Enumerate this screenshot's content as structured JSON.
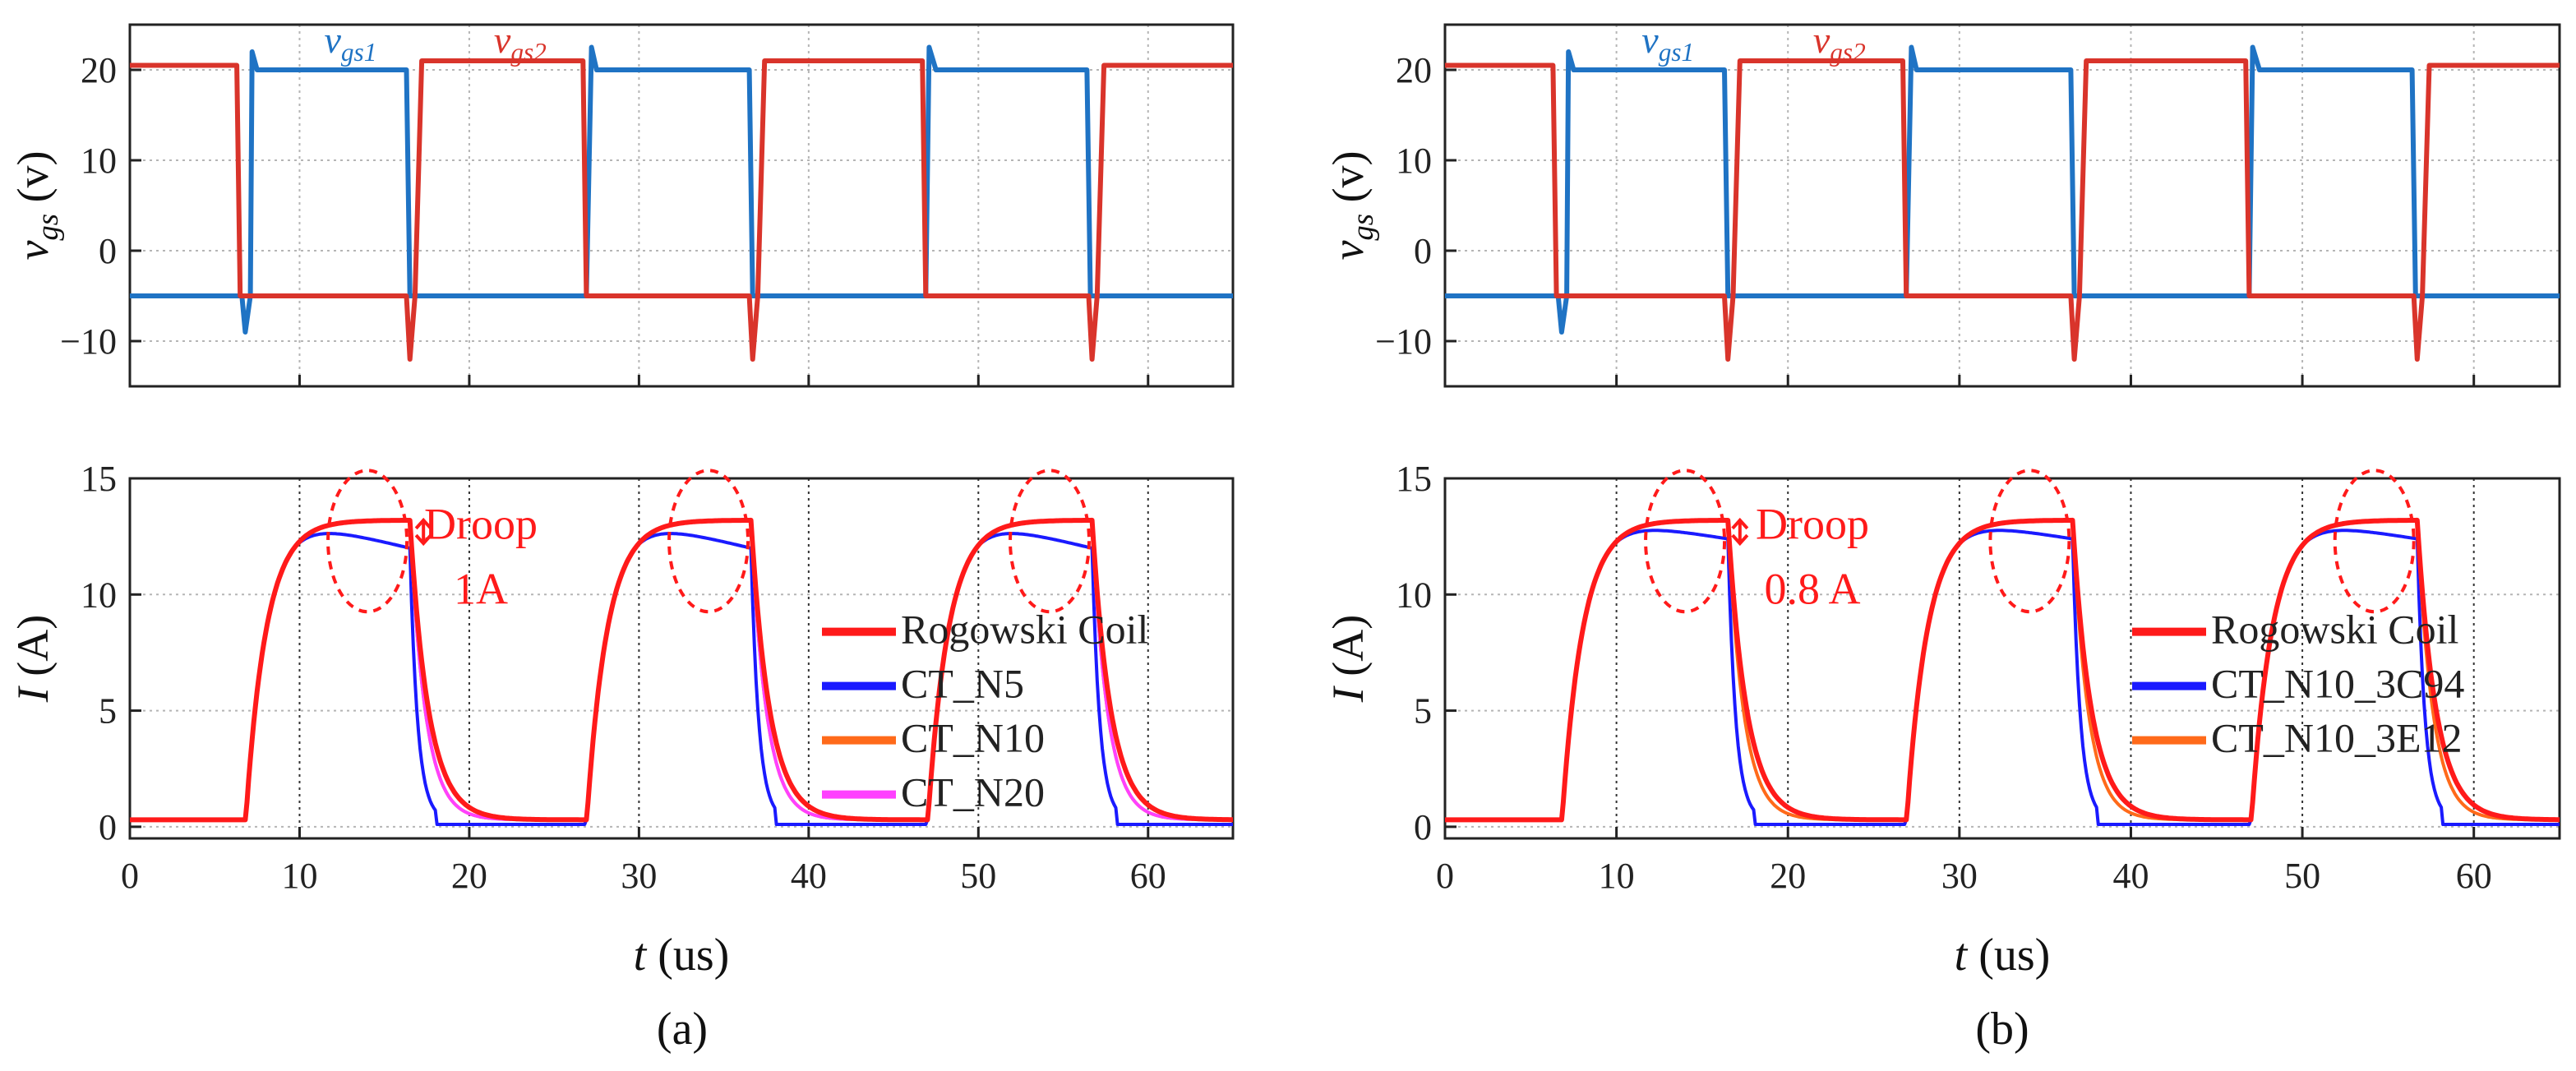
{
  "chart_data": [
    {
      "type": "line",
      "panel": "a",
      "title": "",
      "xlabel_var": "t",
      "xlabel_unit": " (us)",
      "xlim": [
        0,
        65
      ],
      "xticks": [
        0,
        10,
        20,
        30,
        40,
        50,
        60
      ],
      "caption": "(a)",
      "vgs": {
        "ylabel_main": "v",
        "ylabel_sub": "gs",
        "ylabel_unit": " (v)",
        "ylim": [
          -15,
          25
        ],
        "yticks": [
          20,
          10,
          0,
          -10
        ],
        "series": [
          {
            "name": "vgs1",
            "label_main": "v",
            "label_sub": "gs1",
            "color": "#1f73c4",
            "color_key": "blue",
            "x": [
              0,
              6.6,
              6.8,
              7.1,
              7.2,
              7.5,
              16.3,
              16.5,
              26.9,
              27.2,
              27.5,
              36.5,
              36.7,
              46.9,
              47.1,
              47.5,
              56.4,
              56.6,
              65
            ],
            "y": [
              -5,
              -5,
              -9,
              -5,
              22,
              20,
              20,
              -5,
              -5,
              22.5,
              20,
              20,
              -5,
              -5,
              22.5,
              20,
              20,
              -5,
              -5
            ]
          },
          {
            "name": "vgs2",
            "label_main": "v",
            "label_sub": "gs2",
            "color": "#d9342b",
            "color_key": "red",
            "x": [
              0,
              6.3,
              6.5,
              16.3,
              16.5,
              16.8,
              17.2,
              26.7,
              26.9,
              36.5,
              36.7,
              37.0,
              37.4,
              46.7,
              46.9,
              56.5,
              56.7,
              57.0,
              57.4,
              65
            ],
            "y": [
              20.5,
              20.5,
              -5,
              -5,
              -12,
              -5,
              21,
              21,
              -5,
              -5,
              -12,
              -5,
              21,
              21,
              -5,
              -5,
              -12,
              -5,
              20.5,
              20.5
            ]
          }
        ],
        "annotations": [
          {
            "text_main": "v",
            "text_sub": "gs1",
            "x": 13,
            "y": 23,
            "color_key": "blue"
          },
          {
            "text_main": "v",
            "text_sub": "gs2",
            "x": 23,
            "y": 23,
            "color_key": "red"
          }
        ]
      },
      "current": {
        "ylabel_main": "I",
        "ylabel_unit": " (A)",
        "ylim": [
          -0.5,
          15
        ],
        "yticks": [
          15,
          10,
          5,
          0
        ],
        "series": [
          {
            "name": "Rogowski Coil",
            "color": "#ff1a1a",
            "droop": 0
          },
          {
            "name": "CT_N5",
            "color": "#1a1aff",
            "droop": 1.2
          },
          {
            "name": "CT_N10",
            "color": "#ff6a1a",
            "droop": 0
          },
          {
            "name": "CT_N20",
            "color": "#ff40ff",
            "droop": 0
          }
        ],
        "pulses": [
          [
            6.8,
            16.5
          ],
          [
            26.9,
            36.6
          ],
          [
            47.0,
            56.7
          ]
        ],
        "baseline": 0.3,
        "plateau": 13.2,
        "droop_label_line1": "Droop",
        "droop_label_line2": "1A"
      }
    },
    {
      "type": "line",
      "panel": "b",
      "title": "",
      "xlabel_var": "t",
      "xlabel_unit": " (us)",
      "xlim": [
        0,
        65
      ],
      "xticks": [
        0,
        10,
        20,
        30,
        40,
        50,
        60
      ],
      "caption": "(b)",
      "vgs": {
        "ylabel_main": "v",
        "ylabel_sub": "gs",
        "ylabel_unit": " (v)",
        "ylim": [
          -15,
          25
        ],
        "yticks": [
          20,
          10,
          0,
          -10
        ],
        "series": [
          {
            "name": "vgs1",
            "label_main": "v",
            "label_sub": "gs1",
            "color": "#1f73c4",
            "color_key": "blue",
            "x": [
              0,
              6.6,
              6.8,
              7.1,
              7.2,
              7.5,
              16.3,
              16.5,
              26.9,
              27.2,
              27.5,
              36.5,
              36.7,
              46.9,
              47.1,
              47.5,
              56.4,
              56.6,
              65
            ],
            "y": [
              -5,
              -5,
              -9,
              -5,
              22,
              20,
              20,
              -5,
              -5,
              22.5,
              20,
              20,
              -5,
              -5,
              22.5,
              20,
              20,
              -5,
              -5
            ]
          },
          {
            "name": "vgs2",
            "label_main": "v",
            "label_sub": "gs2",
            "color": "#d9342b",
            "color_key": "red",
            "x": [
              0,
              6.3,
              6.5,
              16.3,
              16.5,
              16.8,
              17.2,
              26.7,
              26.9,
              36.5,
              36.7,
              37.0,
              37.4,
              46.7,
              46.9,
              56.5,
              56.7,
              57.0,
              57.4,
              65
            ],
            "y": [
              20.5,
              20.5,
              -5,
              -5,
              -12,
              -5,
              21,
              21,
              -5,
              -5,
              -12,
              -5,
              21,
              21,
              -5,
              -5,
              -12,
              -5,
              20.5,
              20.5
            ]
          }
        ],
        "annotations": [
          {
            "text_main": "v",
            "text_sub": "gs1",
            "x": 13,
            "y": 23,
            "color_key": "blue"
          },
          {
            "text_main": "v",
            "text_sub": "gs2",
            "x": 23,
            "y": 23,
            "color_key": "red"
          }
        ]
      },
      "current": {
        "ylabel_main": "I",
        "ylabel_unit": " (A)",
        "ylim": [
          -0.5,
          15
        ],
        "yticks": [
          15,
          10,
          5,
          0
        ],
        "series": [
          {
            "name": "Rogowski Coil",
            "color": "#ff1a1a",
            "droop": 0
          },
          {
            "name": "CT_N10_3C94",
            "color": "#1a1aff",
            "droop": 0.8
          },
          {
            "name": "CT_N10_3E12",
            "color": "#ff6a1a",
            "droop": 0
          }
        ],
        "pulses": [
          [
            6.8,
            16.5
          ],
          [
            26.9,
            36.6
          ],
          [
            47.0,
            56.7
          ]
        ],
        "baseline": 0.3,
        "plateau": 13.2,
        "droop_label_line1": "Droop",
        "droop_label_line2": "0.8 A"
      }
    }
  ]
}
